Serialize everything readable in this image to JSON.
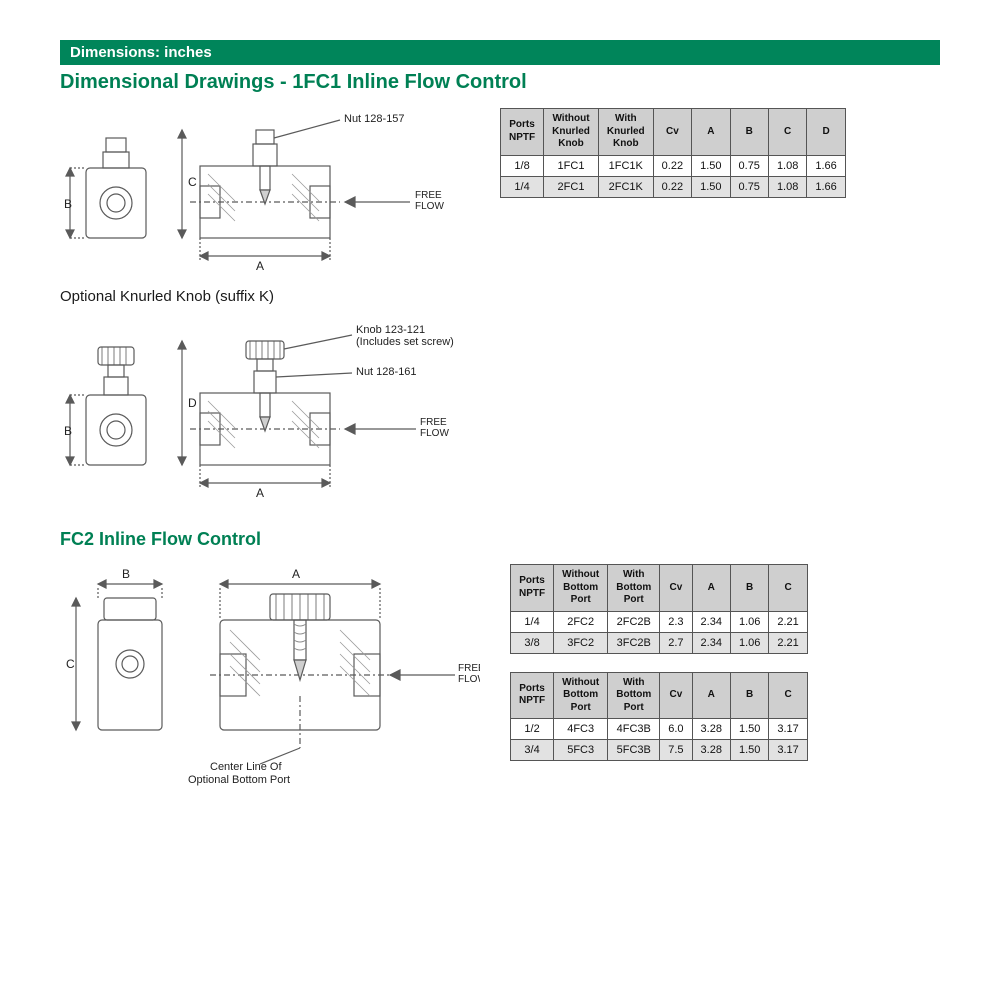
{
  "colors": {
    "banner_bg": "#00855a",
    "accent": "#008054",
    "table_header_bg": "#cfcfcf",
    "table_alt_bg": "#e2e2e2",
    "table_border": "#555555",
    "drawing_line": "#5a5a5a",
    "drawing_hatch": "#8a8a8a"
  },
  "banner": "Dimensions: inches",
  "section1": {
    "title": "Dimensional Drawings - 1FC1 Inline Flow Control",
    "drawing1": {
      "label_nut": "Nut 128-157",
      "label_free_flow": "FREE\nFLOW",
      "dim_A": "A",
      "dim_B": "B",
      "dim_C": "C"
    },
    "subtitle": "Optional Knurled Knob (suffix K)",
    "drawing2": {
      "label_knob": "Knob 123-121\n(Includes set screw)",
      "label_nut": "Nut 128-161",
      "label_free_flow": "FREE\nFLOW",
      "dim_A": "A",
      "dim_B": "B",
      "dim_D": "D"
    },
    "table": {
      "headers": [
        "Ports\nNPTF",
        "Without\nKnurled\nKnob",
        "With\nKnurled\nKnob",
        "Cv",
        "A",
        "B",
        "C",
        "D"
      ],
      "rows": [
        [
          "1/8",
          "1FC1",
          "1FC1K",
          "0.22",
          "1.50",
          "0.75",
          "1.08",
          "1.66"
        ],
        [
          "1/4",
          "2FC1",
          "2FC1K",
          "0.22",
          "1.50",
          "0.75",
          "1.08",
          "1.66"
        ]
      ]
    }
  },
  "section2": {
    "title": "FC2 Inline Flow Control",
    "drawing": {
      "dim_A": "A",
      "dim_B": "B",
      "dim_C": "C",
      "label_free_flow": "FREE\nFLOW",
      "label_centerline": "Center Line Of\nOptional Bottom Port"
    },
    "table1": {
      "headers": [
        "Ports\nNPTF",
        "Without\nBottom\nPort",
        "With\nBottom\nPort",
        "Cv",
        "A",
        "B",
        "C"
      ],
      "rows": [
        [
          "1/4",
          "2FC2",
          "2FC2B",
          "2.3",
          "2.34",
          "1.06",
          "2.21"
        ],
        [
          "3/8",
          "3FC2",
          "3FC2B",
          "2.7",
          "2.34",
          "1.06",
          "2.21"
        ]
      ]
    },
    "table2": {
      "headers": [
        "Ports\nNPTF",
        "Without\nBottom\nPort",
        "With\nBottom\nPort",
        "Cv",
        "A",
        "B",
        "C"
      ],
      "rows": [
        [
          "1/2",
          "4FC3",
          "4FC3B",
          "6.0",
          "3.28",
          "1.50",
          "3.17"
        ],
        [
          "3/4",
          "5FC3",
          "5FC3B",
          "7.5",
          "3.28",
          "1.50",
          "3.17"
        ]
      ]
    }
  }
}
